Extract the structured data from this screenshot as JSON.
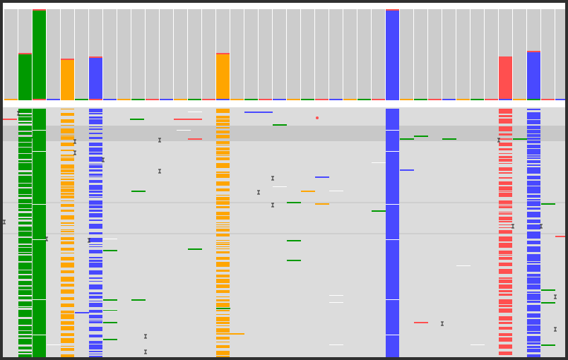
{
  "app": {
    "title": "",
    "palette": {
      "gray": "#cccccc",
      "green": "#009900",
      "orange": "#ffa500",
      "blue": "#4949ff",
      "red": "#ff4f4f",
      "white": "#ffffff",
      "band": "#c8c8c8",
      "background": "#dcdcdc",
      "frame": "#2f2f2f"
    }
  },
  "coverage_track": {
    "label": "",
    "columns": 40,
    "bars": [
      {
        "base": "gray",
        "level": 0.98
      },
      {
        "base": "green",
        "level": 0.51
      },
      {
        "base": "green",
        "level": 0.98
      },
      {
        "base": "gray",
        "level": 0.98
      },
      {
        "base": "orange",
        "level": 0.45
      },
      {
        "base": "gray",
        "level": 0.98
      },
      {
        "base": "blue",
        "level": 0.47
      },
      {
        "base": "gray",
        "level": 0.98
      },
      {
        "base": "gray",
        "level": 0.98
      },
      {
        "base": "gray",
        "level": 0.98
      },
      {
        "base": "gray",
        "level": 0.98
      },
      {
        "base": "gray",
        "level": 0.98
      },
      {
        "base": "gray",
        "level": 0.98
      },
      {
        "base": "gray",
        "level": 0.98
      },
      {
        "base": "gray",
        "level": 0.98
      },
      {
        "base": "orange",
        "level": 0.51
      },
      {
        "base": "gray",
        "level": 0.98
      },
      {
        "base": "gray",
        "level": 0.98
      },
      {
        "base": "gray",
        "level": 0.98
      },
      {
        "base": "gray",
        "level": 0.98
      },
      {
        "base": "gray",
        "level": 0.98
      },
      {
        "base": "gray",
        "level": 0.98
      },
      {
        "base": "gray",
        "level": 0.98
      },
      {
        "base": "gray",
        "level": 0.98
      },
      {
        "base": "gray",
        "level": 0.98
      },
      {
        "base": "gray",
        "level": 0.98
      },
      {
        "base": "gray",
        "level": 0.98
      },
      {
        "base": "blue",
        "level": 0.98
      },
      {
        "base": "gray",
        "level": 0.98
      },
      {
        "base": "gray",
        "level": 0.98
      },
      {
        "base": "gray",
        "level": 0.98
      },
      {
        "base": "gray",
        "level": 0.98
      },
      {
        "base": "gray",
        "level": 0.98
      },
      {
        "base": "gray",
        "level": 0.98
      },
      {
        "base": "gray",
        "level": 0.98
      },
      {
        "base": "red",
        "level": 0.47
      },
      {
        "base": "gray",
        "level": 0.98
      },
      {
        "base": "blue",
        "level": 0.53
      },
      {
        "base": "gray",
        "level": 0.98
      },
      {
        "base": "gray",
        "level": 0.98
      }
    ]
  },
  "alignment_track": {
    "label": "",
    "columns": [
      {
        "index": 1,
        "color": "green",
        "pattern": "striped-heavy"
      },
      {
        "index": 2,
        "color": "green",
        "pattern": "solid"
      },
      {
        "index": 4,
        "color": "orange",
        "pattern": "striped"
      },
      {
        "index": 6,
        "color": "blue",
        "pattern": "striped"
      },
      {
        "index": 15,
        "color": "orange",
        "pattern": "striped"
      },
      {
        "index": 27,
        "color": "blue",
        "pattern": "solid"
      },
      {
        "index": 35,
        "color": "red",
        "pattern": "striped"
      },
      {
        "index": 37,
        "color": "blue",
        "pattern": "striped-heavy"
      }
    ]
  }
}
